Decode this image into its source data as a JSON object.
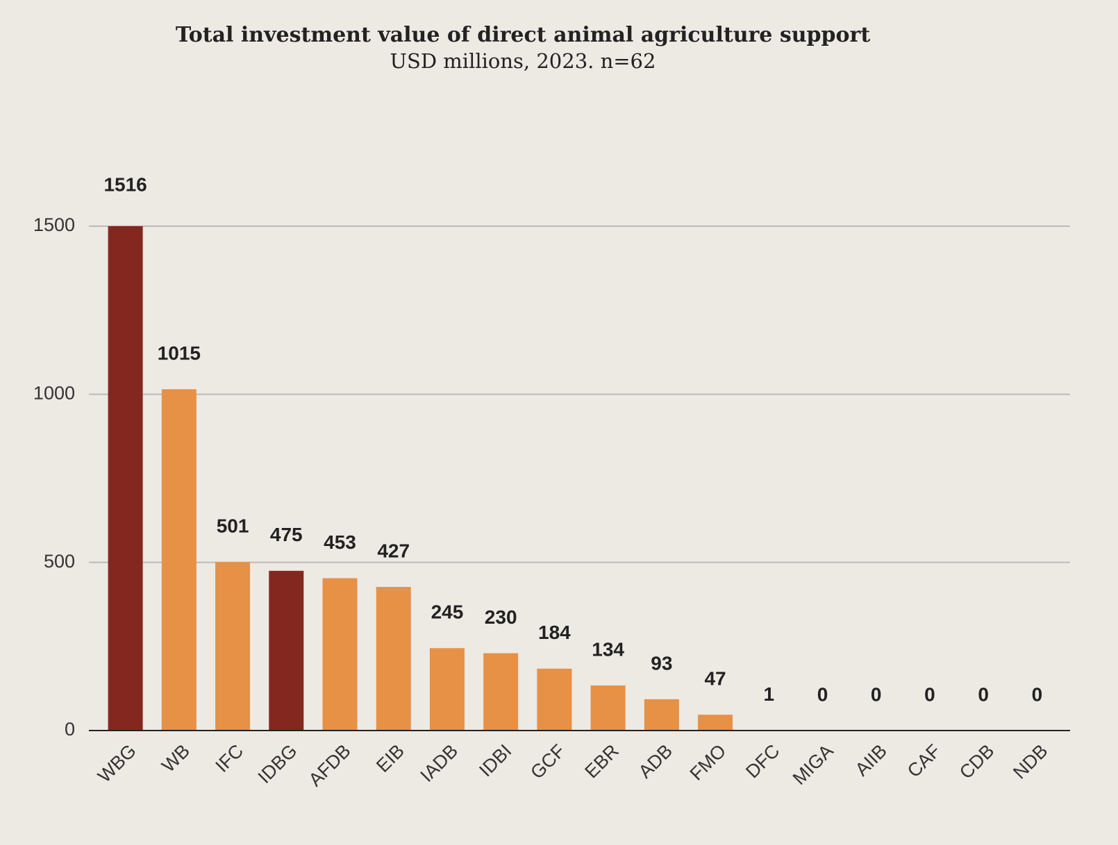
{
  "chart_data": {
    "type": "bar",
    "title": "Total investment value of direct animal agriculture support",
    "subtitle": "USD millions, 2023. n=62",
    "categories": [
      "WBG",
      "WB",
      "IFC",
      "IDBG",
      "AFDB",
      "EIB",
      "IADB",
      "IDBI",
      "GCF",
      "EBR",
      "ADB",
      "FMO",
      "DFC",
      "MIGA",
      "AIIB",
      "CAF",
      "CDB",
      "NDB"
    ],
    "values": [
      1516,
      1015,
      501,
      475,
      453,
      427,
      245,
      230,
      184,
      134,
      93,
      47,
      1,
      0,
      0,
      0,
      0,
      0
    ],
    "colors": [
      "#84281f",
      "#e69146",
      "#e69146",
      "#84281f",
      "#e69146",
      "#e69146",
      "#e69146",
      "#e69146",
      "#e69146",
      "#e69146",
      "#e69146",
      "#e69146",
      "#e69146",
      "#e69146",
      "#e69146",
      "#e69146",
      "#e69146",
      "#e69146"
    ],
    "ylim": [
      0,
      1500
    ],
    "yticks": [
      0,
      500,
      1000,
      1500
    ],
    "grid": true
  }
}
